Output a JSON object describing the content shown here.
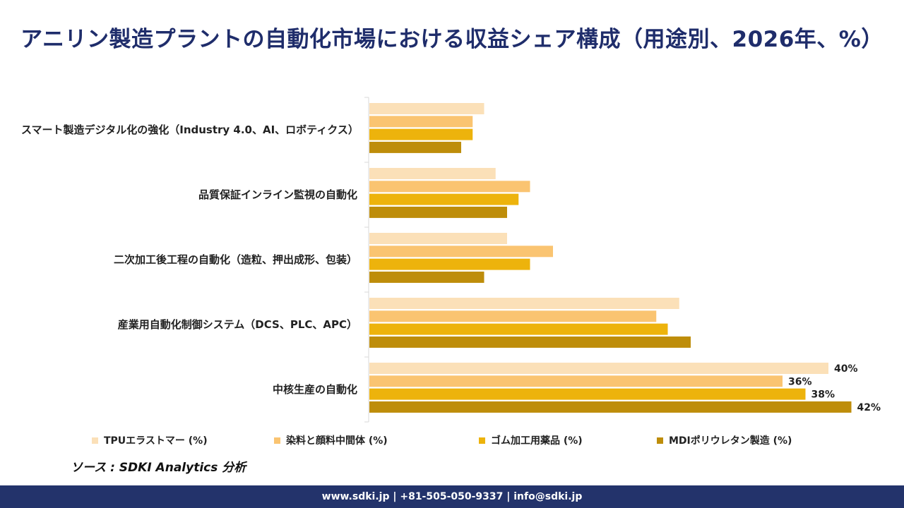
{
  "title": "アニリン製造プラントの自動化市場における収益シェア構成（用途別、2026年、%）",
  "source": "ソース : SDKI Analytics 分析",
  "footer": "www.sdki.jp | +81-505-050-9337 | info@sdki.jp",
  "chart_data": {
    "type": "bar",
    "orientation": "horizontal",
    "title": "アニリン製造プラントの自動化市場における収益シェア構成（用途別、2026年、%）",
    "categories": [
      "スマート製造デジタル化の強化（Industry 4.0、AI、ロボティクス）",
      "品質保証インライン監視の自動化",
      "二次加工後工程の自動化（造粒、押出成形、包装）",
      "産業用自動化制御システム（DCS、PLC、APC）",
      "中核生産の自動化"
    ],
    "series": [
      {
        "name": "TPUエラストマー (%)",
        "color": "#fbe0b8",
        "values": [
          10,
          11,
          12,
          27,
          40
        ]
      },
      {
        "name": "染料と顔料中間体 (%)",
        "color": "#fac471",
        "values": [
          9,
          14,
          16,
          25,
          36
        ]
      },
      {
        "name": "ゴム加工用薬品 (%)",
        "color": "#edb30c",
        "values": [
          9,
          13,
          14,
          26,
          38
        ]
      },
      {
        "name": "MDIポリウレタン製造 (%)",
        "color": "#be8d0a",
        "values": [
          8,
          12,
          10,
          28,
          42
        ]
      }
    ],
    "data_labels": {
      "category_index": 4,
      "labels": [
        "40%",
        "36%",
        "38%",
        "42%"
      ]
    },
    "xlim": [
      0,
      45
    ],
    "grid": false,
    "legend_position": "bottom"
  }
}
